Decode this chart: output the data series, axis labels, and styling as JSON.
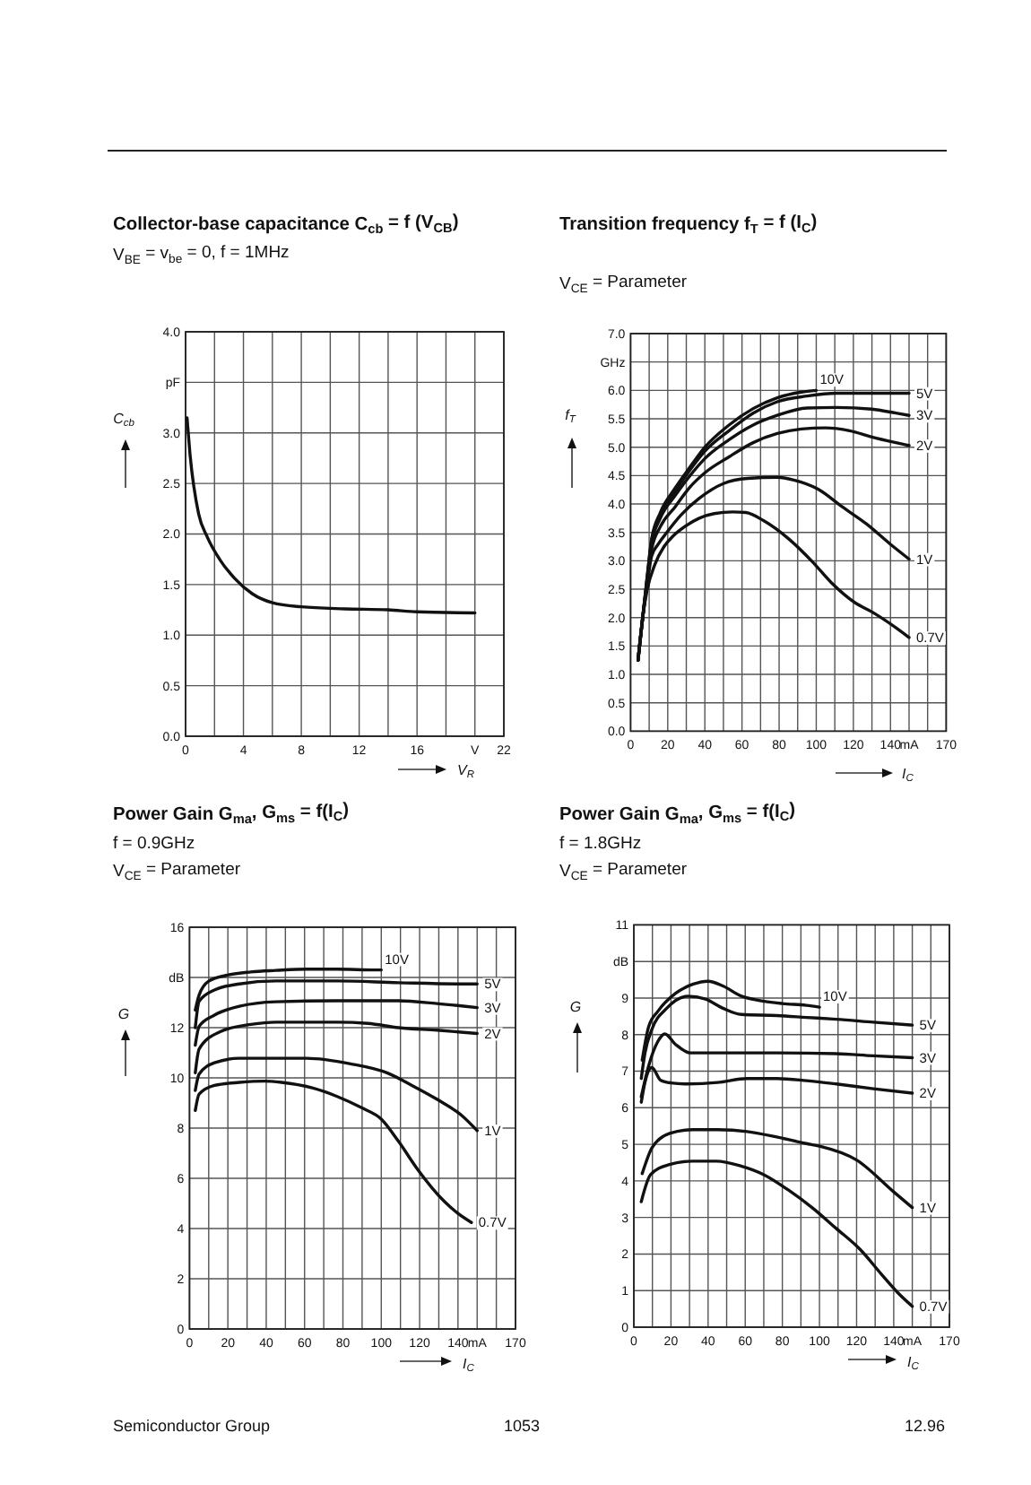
{
  "chart_data": [
    {
      "type": "line",
      "title": "Collector-base capacitance C$_{cb}$ = f (V$_{CB}$)",
      "subtitle": "V$_{BE}$ = v$_{be}$ = 0, f = 1MHz",
      "xlabel": "V$_{R}$",
      "ylabel": "C$_{cb}$",
      "xlim": [
        0,
        22
      ],
      "ylim": [
        0,
        4
      ],
      "xticks": [
        0,
        {
          "value": 2,
          "label": null
        },
        4,
        {
          "value": 6,
          "label": null
        },
        8,
        {
          "value": 10,
          "label": null
        },
        12,
        {
          "value": 14,
          "label": null
        },
        16,
        {
          "value": 18,
          "label": null
        },
        {
          "value": 20,
          "label": "V"
        },
        22
      ],
      "yticks": [
        {
          "value": 0,
          "label": "0.0"
        },
        0.5,
        {
          "value": 1,
          "label": "1.0"
        },
        1.5,
        {
          "value": 2,
          "label": "2.0"
        },
        2.5,
        {
          "value": 3,
          "label": "3.0"
        },
        {
          "value": 3.5,
          "label": "pF"
        },
        {
          "value": 4,
          "label": "4.0"
        }
      ],
      "grid": true,
      "series": [
        {
          "color": "#111111",
          "x": [
            0.1,
            0.3,
            0.9,
            1.5,
            2.4,
            3.4,
            4.6,
            6,
            8,
            11,
            14,
            16,
            20
          ],
          "values": [
            3.15,
            2.8,
            2.2,
            1.97,
            1.74,
            1.56,
            1.41,
            1.32,
            1.28,
            1.26,
            1.25,
            1.23,
            1.22
          ]
        }
      ]
    },
    {
      "type": "line",
      "title": "Transition frequency f$_{T}$ = f (I$_{C}$)",
      "subtitle": "V$_{CE}$ = Parameter",
      "xlabel": "I$_{C}$",
      "ylabel": "f$_{T}$",
      "xlim": [
        0,
        170
      ],
      "ylim": [
        0,
        7
      ],
      "xticks": [
        0,
        {
          "value": 10,
          "label": null
        },
        20,
        {
          "value": 30,
          "label": null
        },
        40,
        {
          "value": 50,
          "label": null
        },
        60,
        {
          "value": 70,
          "label": null
        },
        80,
        {
          "value": 90,
          "label": null
        },
        100,
        {
          "value": 110,
          "label": null
        },
        120,
        {
          "value": 130,
          "label": null
        },
        140,
        {
          "value": 150,
          "label": "mA"
        },
        {
          "value": 160,
          "label": null
        },
        170
      ],
      "yticks": [
        {
          "value": 0,
          "label": "0.0"
        },
        0.5,
        {
          "value": 1,
          "label": "1.0"
        },
        1.5,
        {
          "value": 2,
          "label": "2.0"
        },
        2.5,
        {
          "value": 3,
          "label": "3.0"
        },
        3.5,
        {
          "value": 4,
          "label": "4.0"
        },
        4.5,
        {
          "value": 5,
          "label": "5.0"
        },
        5.5,
        {
          "value": 6,
          "label": "6.0"
        },
        {
          "value": 6.5,
          "label": "GHz"
        },
        {
          "value": 7,
          "label": "7.0"
        }
      ],
      "grid": true,
      "series": [
        {
          "name": "10V",
          "color": "#111111",
          "x": [
            4,
            6.5,
            9,
            11.3,
            16,
            24,
            32,
            40,
            53,
            66,
            79,
            92,
            100
          ],
          "values": [
            1.25,
            2.0,
            2.75,
            3.38,
            3.85,
            4.28,
            4.65,
            5.0,
            5.39,
            5.68,
            5.87,
            5.97,
            6.0
          ]
        },
        {
          "name": "5V",
          "color": "#111111",
          "x": [
            4,
            6.5,
            9,
            11.3,
            16,
            24,
            32,
            40,
            53,
            66,
            79,
            95,
            111,
            130,
            150
          ],
          "values": [
            1.25,
            2.0,
            2.72,
            3.35,
            3.8,
            4.22,
            4.6,
            4.93,
            5.29,
            5.6,
            5.8,
            5.9,
            5.95,
            5.95,
            5.95
          ]
        },
        {
          "name": "3V",
          "color": "#111111",
          "x": [
            4,
            6.5,
            9,
            11.3,
            16,
            24,
            32,
            40,
            53,
            66,
            79,
            95,
            111,
            130,
            143,
            150
          ],
          "values": [
            1.25,
            2.0,
            2.7,
            3.3,
            3.75,
            4.15,
            4.5,
            4.8,
            5.13,
            5.39,
            5.56,
            5.69,
            5.7,
            5.67,
            5.6,
            5.56
          ]
        },
        {
          "name": "2V",
          "color": "#111111",
          "x": [
            4,
            6.5,
            9,
            11.3,
            16,
            24,
            32,
            40,
            53,
            66,
            79,
            92,
            105,
            118,
            130,
            143,
            150
          ],
          "values": [
            1.25,
            2.0,
            2.65,
            3.2,
            3.6,
            3.95,
            4.3,
            4.55,
            4.83,
            5.08,
            5.24,
            5.32,
            5.34,
            5.29,
            5.18,
            5.08,
            5.03
          ]
        },
        {
          "name": "1V",
          "color": "#111111",
          "x": [
            4,
            6.5,
            9,
            11.3,
            15,
            19.3,
            27,
            37,
            50,
            63,
            79,
            88,
            101,
            114,
            127,
            140,
            150
          ],
          "values": [
            1.25,
            2.0,
            2.6,
            3.08,
            3.3,
            3.49,
            3.8,
            4.1,
            4.36,
            4.45,
            4.47,
            4.42,
            4.26,
            3.95,
            3.65,
            3.29,
            3.03
          ]
        },
        {
          "name": "0.7V",
          "color": "#111111",
          "x": [
            4,
            6.5,
            9,
            13,
            18,
            23,
            30,
            37,
            45,
            55,
            62,
            72,
            85,
            98,
            108,
            121,
            130,
            143,
            150
          ],
          "values": [
            1.25,
            2.0,
            2.5,
            2.93,
            3.25,
            3.44,
            3.62,
            3.75,
            3.83,
            3.86,
            3.85,
            3.7,
            3.39,
            2.98,
            2.62,
            2.26,
            2.1,
            1.82,
            1.65
          ]
        }
      ]
    },
    {
      "type": "line",
      "title": "Power Gain G$_{ma}$, G$_{ms}$ = f(I$_{C}$)",
      "subtitle": "f = 0.9GHz\nV$_{CE}$ = Parameter",
      "xlabel": "I$_{C}$",
      "ylabel": "G",
      "xlim": [
        0,
        170
      ],
      "ylim": [
        0,
        16
      ],
      "xticks": [
        0,
        {
          "value": 10,
          "label": null
        },
        20,
        {
          "value": 30,
          "label": null
        },
        40,
        {
          "value": 50,
          "label": null
        },
        60,
        {
          "value": 70,
          "label": null
        },
        80,
        {
          "value": 90,
          "label": null
        },
        100,
        {
          "value": 110,
          "label": null
        },
        120,
        {
          "value": 130,
          "label": null
        },
        140,
        {
          "value": 150,
          "label": "mA"
        },
        {
          "value": 160,
          "label": null
        },
        170
      ],
      "yticks": [
        0,
        2,
        4,
        6,
        8,
        10,
        12,
        {
          "value": 14,
          "label": "dB"
        },
        16
      ],
      "grid": true,
      "series": [
        {
          "name": "10V",
          "color": "#111111",
          "x": [
            3,
            5,
            10,
            19,
            32,
            45,
            61,
            77,
            97,
            100
          ],
          "values": [
            12.7,
            13.3,
            13.85,
            14.08,
            14.22,
            14.28,
            14.33,
            14.33,
            14.3,
            14.3
          ]
        },
        {
          "name": "5V",
          "color": "#111111",
          "x": [
            3,
            5,
            13,
            26,
            45,
            77,
            109,
            142,
            150
          ],
          "values": [
            12.0,
            13.05,
            13.5,
            13.74,
            13.86,
            13.86,
            13.79,
            13.74,
            13.74
          ]
        },
        {
          "name": "3V",
          "color": "#111111",
          "x": [
            3,
            5,
            13,
            26,
            45,
            77,
            109,
            129,
            150
          ],
          "values": [
            11.3,
            12.05,
            12.5,
            12.85,
            13.03,
            13.07,
            13.07,
            12.96,
            12.8
          ]
        },
        {
          "name": "2V",
          "color": "#111111",
          "x": [
            3,
            5,
            16,
            32,
            45,
            77,
            93,
            109,
            129,
            150
          ],
          "values": [
            10.2,
            11.15,
            11.84,
            12.13,
            12.22,
            12.22,
            12.17,
            12.0,
            11.9,
            11.77
          ]
        },
        {
          "name": "1V",
          "color": "#111111",
          "x": [
            3,
            5,
            13,
            26,
            45,
            61,
            84,
            103,
            116,
            129,
            142,
            150
          ],
          "values": [
            9.5,
            10.15,
            10.6,
            10.78,
            10.78,
            10.78,
            10.56,
            10.2,
            9.7,
            9.15,
            8.5,
            7.9
          ]
        },
        {
          "name": "0.7V",
          "color": "#111111",
          "x": [
            3,
            5,
            13,
            26,
            39,
            48,
            64,
            77,
            90,
            100,
            109,
            119,
            133,
            140,
            147
          ],
          "values": [
            8.7,
            9.35,
            9.7,
            9.82,
            9.87,
            9.82,
            9.6,
            9.26,
            8.8,
            8.36,
            7.47,
            6.35,
            5.07,
            4.6,
            4.24
          ]
        }
      ]
    },
    {
      "type": "line",
      "title": "Power Gain G$_{ma}$, G$_{ms}$ = f(I$_{C}$)",
      "subtitle": "f = 1.8GHz\nV$_{CE}$ = Parameter",
      "xlabel": "I$_{C}$",
      "ylabel": "G",
      "xlim": [
        0,
        170
      ],
      "ylim": [
        0,
        11
      ],
      "xticks": [
        0,
        {
          "value": 10,
          "label": null
        },
        20,
        {
          "value": 30,
          "label": null
        },
        40,
        {
          "value": 50,
          "label": null
        },
        60,
        {
          "value": 70,
          "label": null
        },
        80,
        {
          "value": 90,
          "label": null
        },
        100,
        {
          "value": 110,
          "label": null
        },
        120,
        {
          "value": 130,
          "label": null
        },
        140,
        {
          "value": 150,
          "label": "mA"
        },
        {
          "value": 160,
          "label": null
        },
        170
      ],
      "yticks": [
        0,
        1,
        2,
        3,
        4,
        5,
        6,
        7,
        8,
        9,
        {
          "value": 10,
          "label": "dB"
        },
        11
      ],
      "grid": true,
      "series": [
        {
          "name": "10V",
          "color": "#111111",
          "x": [
            4.5,
            8,
            13,
            22.5,
            32,
            40,
            48,
            58,
            68,
            80,
            93,
            100
          ],
          "values": [
            7.3,
            8.22,
            8.64,
            9.13,
            9.38,
            9.46,
            9.33,
            9.05,
            8.93,
            8.85,
            8.8,
            8.75
          ]
        },
        {
          "name": "5V",
          "color": "#111111",
          "x": [
            4,
            6,
            9.7,
            17.7,
            29,
            38.6,
            48,
            58,
            77,
            93,
            109,
            129,
            150
          ],
          "values": [
            6.8,
            7.5,
            8.14,
            8.72,
            9.05,
            8.97,
            8.72,
            8.55,
            8.52,
            8.47,
            8.42,
            8.34,
            8.26
          ]
        },
        {
          "name": "3V",
          "color": "#111111",
          "x": [
            4,
            8,
            12.9,
            16.7,
            22.5,
            30.6,
            45,
            77,
            109,
            129,
            150
          ],
          "values": [
            6.3,
            7.15,
            7.81,
            8.02,
            7.73,
            7.5,
            7.5,
            7.5,
            7.48,
            7.42,
            7.37
          ]
        },
        {
          "name": "2V",
          "color": "#111111",
          "x": [
            4,
            6,
            9.7,
            14.5,
            20,
            29,
            45,
            61,
            77,
            93,
            109,
            129,
            150
          ],
          "values": [
            6.15,
            6.7,
            7.1,
            6.75,
            6.68,
            6.65,
            6.69,
            6.8,
            6.8,
            6.74,
            6.65,
            6.52,
            6.4
          ]
        },
        {
          "name": "1V",
          "color": "#111111",
          "x": [
            4.5,
            6.5,
            9.7,
            19.3,
            32,
            45,
            61,
            77,
            93,
            100,
            120,
            140,
            150
          ],
          "values": [
            4.2,
            4.5,
            4.9,
            5.3,
            5.4,
            5.4,
            5.35,
            5.2,
            5.02,
            4.95,
            4.57,
            3.7,
            3.27
          ]
        },
        {
          "name": "0.7V",
          "color": "#111111",
          "x": [
            4,
            9,
            18.7,
            31.6,
            44.5,
            57.4,
            70,
            83,
            96,
            109,
            122,
            133,
            143,
            150
          ],
          "values": [
            3.43,
            4.17,
            4.44,
            4.54,
            4.54,
            4.41,
            4.17,
            3.76,
            3.27,
            2.7,
            2.12,
            1.47,
            0.9,
            0.57
          ]
        }
      ],
      "annotations": [
        "Semiconductor Group",
        "1053",
        "12.96"
      ]
    }
  ]
}
